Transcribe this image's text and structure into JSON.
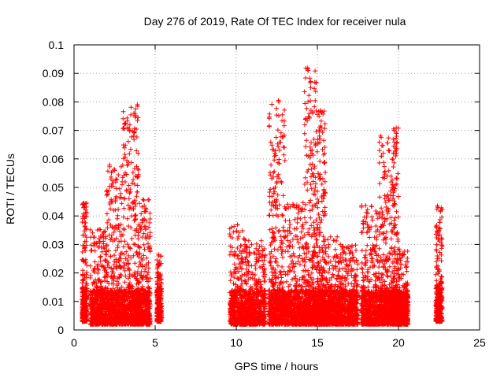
{
  "chart_data": {
    "type": "scatter",
    "title": "Day 276 of 2019, Rate Of TEC Index for receiver nula",
    "xlabel": "GPS time / hours",
    "ylabel": "ROTI / TECUs",
    "xlim": [
      0,
      25
    ],
    "ylim": [
      0,
      0.1
    ],
    "xticks": [
      0,
      5,
      10,
      15,
      20,
      25
    ],
    "yticks": [
      0,
      0.01,
      0.02,
      0.03,
      0.04,
      0.05,
      0.06,
      0.07,
      0.08,
      0.09,
      0.1
    ],
    "grid": true,
    "marker": "plus",
    "color": "#ff0000",
    "clusters": [
      {
        "x_range": [
          0.5,
          0.8
        ],
        "y_min": 0.003,
        "y_max": 0.045
      },
      {
        "x_range": [
          1.0,
          2.0
        ],
        "y_min": 0.002,
        "y_max": 0.036
      },
      {
        "x_range": [
          2.0,
          3.0
        ],
        "y_min": 0.002,
        "y_max": 0.058
      },
      {
        "x_range": [
          3.0,
          4.0
        ],
        "y_min": 0.002,
        "y_max": 0.079
      },
      {
        "x_range": [
          4.0,
          4.7
        ],
        "y_min": 0.002,
        "y_max": 0.046
      },
      {
        "x_range": [
          5.1,
          5.4
        ],
        "y_min": 0.003,
        "y_max": 0.026
      },
      {
        "x_range": [
          9.6,
          10.6
        ],
        "y_min": 0.002,
        "y_max": 0.038
      },
      {
        "x_range": [
          10.6,
          11.8
        ],
        "y_min": 0.002,
        "y_max": 0.032
      },
      {
        "x_range": [
          12.0,
          13.0
        ],
        "y_min": 0.002,
        "y_max": 0.08
      },
      {
        "x_range": [
          13.0,
          14.2
        ],
        "y_min": 0.002,
        "y_max": 0.045
      },
      {
        "x_range": [
          14.2,
          15.0
        ],
        "y_min": 0.002,
        "y_max": 0.092
      },
      {
        "x_range": [
          15.0,
          15.5
        ],
        "y_min": 0.002,
        "y_max": 0.077
      },
      {
        "x_range": [
          15.5,
          16.5
        ],
        "y_min": 0.002,
        "y_max": 0.033
      },
      {
        "x_range": [
          16.5,
          17.5
        ],
        "y_min": 0.002,
        "y_max": 0.03
      },
      {
        "x_range": [
          17.7,
          18.8
        ],
        "y_min": 0.002,
        "y_max": 0.044
      },
      {
        "x_range": [
          18.8,
          19.6
        ],
        "y_min": 0.002,
        "y_max": 0.068
      },
      {
        "x_range": [
          19.6,
          20.0
        ],
        "y_min": 0.002,
        "y_max": 0.071
      },
      {
        "x_range": [
          20.0,
          20.6
        ],
        "y_min": 0.002,
        "y_max": 0.029
      },
      {
        "x_range": [
          22.3,
          22.7
        ],
        "y_min": 0.003,
        "y_max": 0.044
      }
    ],
    "outliers": [
      {
        "x": 14.4,
        "y": 0.0915
      },
      {
        "x": 3.9,
        "y": 0.079
      },
      {
        "x": 12.6,
        "y": 0.0805
      },
      {
        "x": 15.2,
        "y": 0.077
      },
      {
        "x": 19.7,
        "y": 0.0705
      },
      {
        "x": 3.4,
        "y": 0.0705
      },
      {
        "x": 18.9,
        "y": 0.068
      },
      {
        "x": 22.4,
        "y": 0.0435
      },
      {
        "x": 0.6,
        "y": 0.0445
      },
      {
        "x": 5.2,
        "y": 0.0265
      }
    ]
  }
}
